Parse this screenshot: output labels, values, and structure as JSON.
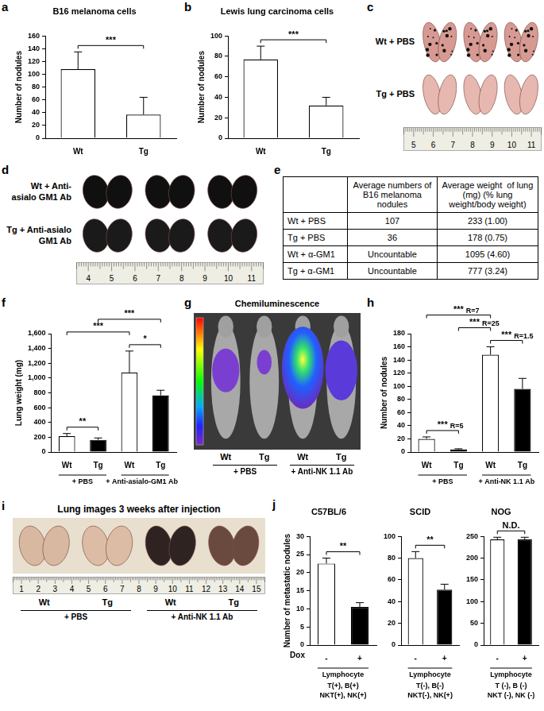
{
  "chart_data": [
    {
      "panel": "a",
      "type": "bar",
      "title": "B16 melanoma cells",
      "y_label": "Number of nodules",
      "categories": [
        "Wt",
        "Tg"
      ],
      "values": [
        108,
        37
      ],
      "errors": [
        27,
        27
      ],
      "colors": [
        "#ffffff",
        "#ffffff"
      ],
      "ylim": [
        0,
        160
      ],
      "yticks": [
        0,
        20,
        40,
        60,
        80,
        100,
        120,
        140,
        160
      ],
      "grid": false,
      "annotations": [
        {
          "from": 0,
          "to": 1,
          "text": "***"
        }
      ]
    },
    {
      "panel": "b",
      "type": "bar",
      "title": "Lewis lung carcinoma cells",
      "y_label": "Number of nodules",
      "categories": [
        "Wt",
        "Tg"
      ],
      "values": [
        77,
        32
      ],
      "errors": [
        13,
        8
      ],
      "colors": [
        "#ffffff",
        "#ffffff"
      ],
      "ylim": [
        0,
        100
      ],
      "yticks": [
        0,
        20,
        40,
        60,
        80,
        100
      ],
      "grid": false,
      "annotations": [
        {
          "from": 0,
          "to": 1,
          "text": "***"
        }
      ]
    },
    {
      "panel": "f",
      "type": "bar",
      "y_label": "Lung weight (mg)",
      "categories": [
        "Wt",
        "Tg",
        "Wt",
        "Tg"
      ],
      "values": [
        215,
        165,
        1075,
        765
      ],
      "errors": [
        35,
        25,
        290,
        70
      ],
      "colors": [
        "#ffffff",
        "#000000",
        "#ffffff",
        "#000000"
      ],
      "ylim": [
        0,
        1600
      ],
      "yticks": [
        0,
        200,
        400,
        600,
        800,
        1000,
        1200,
        1400,
        1600
      ],
      "grid": false,
      "groups": [
        {
          "from": 0,
          "to": 1,
          "text": "+ PBS"
        },
        {
          "from": 2,
          "to": 3,
          "text": "+ Anti-asialo-GM1 Ab"
        }
      ],
      "annotations": [
        {
          "from": 0,
          "to": 1,
          "text": "**"
        },
        {
          "from": 2,
          "to": 3,
          "text": "*"
        },
        {
          "from": 0,
          "to": 2,
          "text": "***"
        },
        {
          "from": 1,
          "to": 3,
          "text": "***"
        }
      ]
    },
    {
      "panel": "h",
      "type": "bar",
      "y_label": "Number of nodules",
      "categories": [
        "Wt",
        "Tg",
        "Wt",
        "Tg"
      ],
      "values": [
        20,
        4,
        148,
        96
      ],
      "errors": [
        3,
        1,
        12,
        16
      ],
      "colors": [
        "#ffffff",
        "#000000",
        "#ffffff",
        "#000000"
      ],
      "ylim": [
        0,
        180
      ],
      "yticks": [
        0,
        20,
        40,
        60,
        80,
        100,
        120,
        140,
        160,
        180
      ],
      "grid": false,
      "groups": [
        {
          "from": 0,
          "to": 1,
          "text": "+ PBS"
        },
        {
          "from": 2,
          "to": 3,
          "text": "+ Anti-NK 1.1 Ab"
        }
      ],
      "annotations": [
        {
          "from": 0,
          "to": 1,
          "text": "***",
          "note": "R=5"
        },
        {
          "from": 2,
          "to": 3,
          "text": "***",
          "note": "R=1.5"
        },
        {
          "from": 1,
          "to": 2,
          "text": "***",
          "note": "R=25"
        },
        {
          "from": 0,
          "to": 2,
          "text": "***",
          "note": "R=7"
        }
      ]
    },
    {
      "panel": "j",
      "type": "bar",
      "title": "C57BL/6",
      "y_label": "Number of metastatic nodules",
      "x_label": "Dox",
      "categories": [
        "-",
        "+"
      ],
      "values": [
        22.5,
        10.5
      ],
      "errors": [
        1.5,
        1.2
      ],
      "colors": [
        "#ffffff",
        "#000000"
      ],
      "ylim": [
        0,
        30
      ],
      "yticks": [
        0,
        5,
        10,
        15,
        20,
        25,
        30
      ],
      "grid": false,
      "groups": [
        {
          "from": 0,
          "to": 1,
          "text": "Lymphocyte"
        }
      ],
      "footer": [
        "T(+), B(+)",
        "NKT(+), NK(+)"
      ],
      "annotations": [
        {
          "from": 0,
          "to": 1,
          "text": "**"
        }
      ]
    },
    {
      "type": "bar",
      "title": "SCID",
      "categories": [
        "-",
        "+"
      ],
      "values": [
        80,
        51
      ],
      "errors": [
        6,
        5
      ],
      "colors": [
        "#ffffff",
        "#000000"
      ],
      "ylim": [
        0,
        100
      ],
      "yticks": [
        0,
        20,
        40,
        60,
        80,
        100
      ],
      "grid": false,
      "groups": [
        {
          "from": 0,
          "to": 1,
          "text": "Lymphocyte"
        }
      ],
      "footer": [
        "T(-), B(-)",
        "NKT(-), NK(+)"
      ],
      "annotations": [
        {
          "from": 0,
          "to": 1,
          "text": "**"
        }
      ]
    },
    {
      "type": "bar",
      "title": "NOG",
      "categories": [
        "-",
        "+"
      ],
      "values": [
        243,
        243
      ],
      "errors": [
        5,
        5
      ],
      "colors": [
        "#ffffff",
        "#000000"
      ],
      "ylim": [
        0,
        250
      ],
      "yticks": [
        0,
        50,
        100,
        150,
        200,
        250
      ],
      "grid": false,
      "groups": [
        {
          "from": 0,
          "to": 1,
          "text": "Lymphocyte"
        }
      ],
      "footer": [
        "T (-), B (-)",
        "NKT (-), NK (-)"
      ],
      "annotations": [
        {
          "from": 0,
          "to": 1,
          "text": "N.D."
        }
      ]
    }
  ],
  "images": [
    {
      "panel": "c",
      "rows": [
        "Wt + PBS",
        "Tg + PBS"
      ],
      "ruler": [
        5,
        6,
        7,
        8,
        9,
        10,
        11
      ]
    },
    {
      "panel": "d",
      "rows": [
        "Wt + Anti-asialo GM1 Ab",
        "Tg + Anti-asialo GM1 Ab"
      ],
      "ruler": [
        4,
        5,
        6,
        7,
        8,
        9,
        10,
        11
      ]
    },
    {
      "panel": "g",
      "title": "Chemiluminescence",
      "labels": [
        "Wt",
        "Tg",
        "Wt",
        "Tg"
      ],
      "groups": [
        {
          "from": 0,
          "to": 1,
          "text": "+ PBS"
        },
        {
          "from": 2,
          "to": 3,
          "text": "+ Anti-NK 1.1 Ab"
        }
      ]
    },
    {
      "panel": "i",
      "title": "Lung images 3 weeks after injection",
      "labels": [
        "Wt",
        "Tg",
        "Wt",
        "Tg"
      ],
      "groups": [
        {
          "from": 0,
          "to": 1,
          "text": "+ PBS"
        },
        {
          "from": 2,
          "to": 3,
          "text": "+ Anti-NK 1.1 Ab"
        }
      ],
      "ruler": [
        1,
        2,
        3,
        4,
        5,
        6,
        7,
        8,
        9,
        10,
        11,
        12,
        13,
        14,
        15
      ]
    }
  ],
  "table": {
    "panel": "e",
    "header": [
      null,
      "Average numbers of B16 melanoma nodules",
      "Average weight  of lung (mg) (% lung weight/body weight)"
    ],
    "rows": [
      [
        "Wt + PBS",
        107,
        "233 (1.00)"
      ],
      [
        "Tg + PBS",
        36,
        "178 (0.75)"
      ],
      [
        "Wt + α-GM1",
        "Uncountable",
        "1095 (4.60)"
      ],
      [
        "Tg + α-GM1",
        "Uncountable",
        "777 (3.24)"
      ]
    ]
  }
}
